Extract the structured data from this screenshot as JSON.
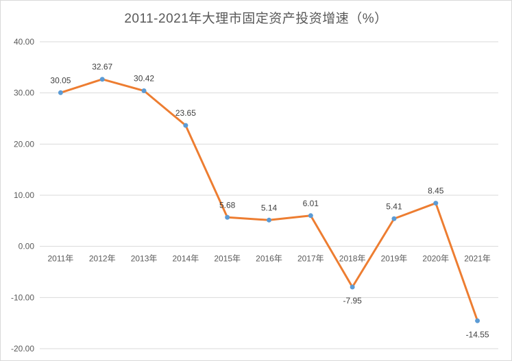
{
  "chart_data": {
    "type": "line",
    "title": "2011-2021年大理市固定资产投资增速（%）",
    "xlabel": "",
    "ylabel": "",
    "categories": [
      "2011年",
      "2012年",
      "2013年",
      "2014年",
      "2015年",
      "2016年",
      "2017年",
      "2018年",
      "2019年",
      "2020年",
      "2021年"
    ],
    "series": [
      {
        "name": "固定资产投资增速",
        "values": [
          30.05,
          32.67,
          30.42,
          23.65,
          5.68,
          5.14,
          6.01,
          -7.95,
          5.41,
          8.45,
          -14.55
        ],
        "labels": [
          "30.05",
          "32.67",
          "30.42",
          "23.65",
          "5.68",
          "5.14",
          "6.01",
          "-7.95",
          "5.41",
          "8.45",
          "-14.55"
        ],
        "line_color": "#ed7d31",
        "marker_color": "#5b9bd5"
      }
    ],
    "ylim": [
      -20,
      40
    ],
    "yticks": [
      "40.00",
      "30.00",
      "20.00",
      "10.00",
      "0.00",
      "-10.00",
      "-20.00"
    ],
    "ytick_values": [
      40,
      30,
      20,
      10,
      0,
      -10,
      -20
    ],
    "grid": true,
    "legend": "none"
  }
}
